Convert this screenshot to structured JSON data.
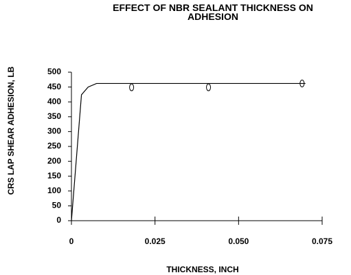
{
  "chart_data": {
    "type": "line",
    "title": "EFFECT OF NBR SEALANT THICKNESS ON ADHESION",
    "xlabel": "THICKNESS, INCH",
    "ylabel": "CRS LAP SHEAR ADHESION, LB",
    "xlim": [
      0,
      0.075
    ],
    "xticks": [
      0,
      0.025,
      {
        "value": 0.05,
        "label": "0.050"
      },
      0.075
    ],
    "ylim": [
      0,
      500
    ],
    "yticks": [
      0,
      50,
      100,
      150,
      200,
      250,
      300,
      350,
      400,
      450,
      500
    ],
    "color": "#000000",
    "series": [
      {
        "x": [
          0,
          0.003,
          0.005,
          0.0075,
          0.07
        ],
        "values": [
          0,
          424,
          450,
          462,
          462
        ],
        "markers": false
      },
      {
        "x": [
          0.018,
          0.041,
          0.069
        ],
        "values": [
          449,
          449,
          462
        ],
        "markers": true
      }
    ]
  }
}
